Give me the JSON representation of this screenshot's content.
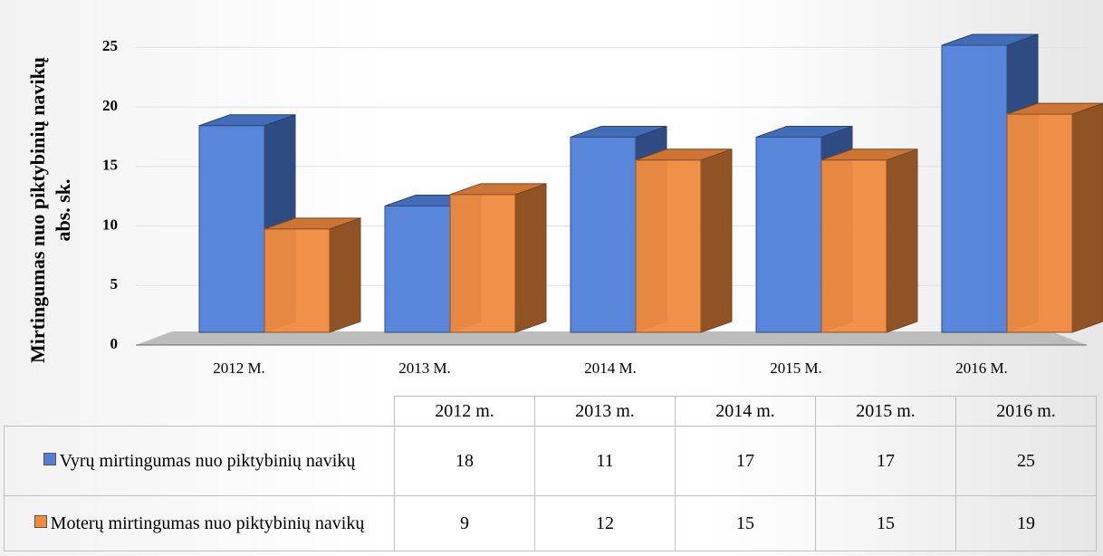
{
  "chart_data": {
    "type": "bar3d",
    "y_label": [
      "Mirtingumas nuo piktybinių navikų",
      "abs. sk."
    ],
    "categories": [
      "2012 M.",
      "2013 M.",
      "2014 M.",
      "2015 M.",
      "2016 M."
    ],
    "table_categories": [
      "2012 m.",
      "2013 m.",
      "2014 m.",
      "2015 m.",
      "2016 m."
    ],
    "series": [
      {
        "name": "Vyrų mirtingumas nuo piktybinių navikų",
        "color": "#4f7fd8",
        "values": [
          18,
          11,
          17,
          17,
          25
        ]
      },
      {
        "name": "Moterų mirtingumas nuo piktybinių navikų",
        "color": "#f08a3e",
        "values": [
          9,
          12,
          15,
          15,
          19
        ]
      }
    ],
    "ylim": [
      0,
      25
    ],
    "yticks": [
      0,
      5,
      10,
      15,
      20,
      25
    ],
    "grid": true
  }
}
